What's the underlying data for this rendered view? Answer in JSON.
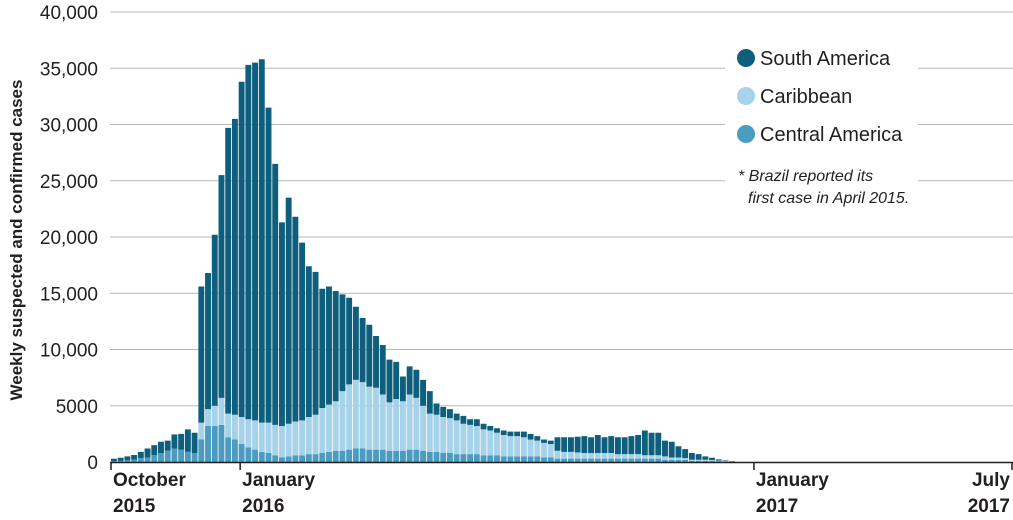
{
  "chart_data": {
    "type": "bar",
    "stacked": true,
    "ylabel": "Weekly suspected and confirmed cases",
    "xlabel": "",
    "ylim": [
      0,
      40000
    ],
    "yticks": [
      {
        "value": 0,
        "label": "0"
      },
      {
        "value": 5000,
        "label": "5000"
      },
      {
        "value": 10000,
        "label": "10,000"
      },
      {
        "value": 15000,
        "label": "15,000"
      },
      {
        "value": 20000,
        "label": "20,000"
      },
      {
        "value": 25000,
        "label": "25,000"
      },
      {
        "value": 30000,
        "label": "30,000"
      },
      {
        "value": 35000,
        "label": "35,000"
      },
      {
        "value": 40000,
        "label": "40,000"
      }
    ],
    "x_range": [
      "2015-10-01",
      "2017-07-01"
    ],
    "xticks": [
      {
        "date": "2015-10-01",
        "line1": "October",
        "line2": "2015",
        "anchor": "start"
      },
      {
        "date": "2016-01-01",
        "line1": "January",
        "line2": "2016",
        "anchor": "start"
      },
      {
        "date": "2017-01-01",
        "line1": "January",
        "line2": "2017",
        "anchor": "start"
      },
      {
        "date": "2017-07-01",
        "line1": "July",
        "line2": "2017",
        "anchor": "end"
      }
    ],
    "grid": true,
    "legend_position": "top-right",
    "colors": {
      "south_america": "#0e5f7d",
      "caribbean": "#a6d2ea",
      "central_america": "#4b9cc0"
    },
    "series": [
      {
        "name": "South America",
        "key": "south_america",
        "values": [
          210,
          280,
          350,
          420,
          550,
          800,
          900,
          1000,
          900,
          1250,
          1400,
          2000,
          1800,
          12100,
          12100,
          15200,
          19800,
          25400,
          26300,
          29800,
          31500,
          31800,
          32300,
          28000,
          23200,
          18100,
          20100,
          18200,
          15800,
          13400,
          12700,
          10600,
          10500,
          9800,
          8600,
          7700,
          6500,
          5700,
          5500,
          4600,
          4400,
          3800,
          3300,
          2200,
          2500,
          2500,
          2300,
          2000,
          1000,
          900,
          800,
          600,
          700,
          500,
          600,
          500,
          400,
          400,
          400,
          400,
          400,
          500,
          500,
          400,
          300,
          300,
          1200,
          1300,
          1300,
          1400,
          1500,
          1400,
          1600,
          1400,
          1500,
          1500,
          1500,
          1600,
          1700,
          2200,
          2000,
          2000,
          1400,
          1400,
          1000,
          800,
          600,
          500,
          300,
          200,
          100,
          50,
          30
        ]
      },
      {
        "name": "Caribbean",
        "key": "caribbean",
        "values": [
          0,
          0,
          0,
          0,
          0,
          0,
          0,
          0,
          0,
          0,
          0,
          0,
          0,
          1500,
          1500,
          1800,
          2400,
          2100,
          2200,
          2400,
          2500,
          2600,
          2600,
          2700,
          2700,
          2800,
          2900,
          3000,
          3100,
          3300,
          3500,
          4000,
          4200,
          4400,
          5300,
          5800,
          6100,
          5900,
          5600,
          5500,
          4900,
          4300,
          4600,
          4400,
          4900,
          4600,
          4000,
          3400,
          3300,
          3200,
          3100,
          3000,
          2700,
          2600,
          2500,
          2300,
          2200,
          2000,
          1900,
          1800,
          1800,
          1700,
          1500,
          1400,
          1300,
          1200,
          700,
          600,
          600,
          550,
          500,
          500,
          500,
          500,
          500,
          400,
          400,
          400,
          400,
          300,
          300,
          300,
          300,
          200,
          200,
          150,
          100,
          100,
          100,
          80,
          50,
          50,
          30
        ]
      },
      {
        "name": "Central America",
        "key": "central_america",
        "values": [
          80,
          100,
          150,
          200,
          350,
          400,
          600,
          800,
          1000,
          1200,
          1100,
          900,
          800,
          2000,
          3200,
          3200,
          3300,
          2200,
          2000,
          1600,
          1300,
          1100,
          900,
          800,
          600,
          400,
          500,
          600,
          600,
          700,
          700,
          800,
          900,
          1000,
          1000,
          1100,
          1200,
          1200,
          1100,
          1100,
          1100,
          1000,
          1000,
          1000,
          1100,
          1100,
          1000,
          900,
          900,
          800,
          800,
          700,
          700,
          700,
          700,
          600,
          600,
          600,
          500,
          500,
          500,
          500,
          500,
          500,
          400,
          400,
          300,
          300,
          300,
          300,
          300,
          300,
          300,
          300,
          300,
          300,
          300,
          300,
          300,
          300,
          300,
          300,
          200,
          200,
          200,
          200,
          100,
          100,
          100,
          100,
          80,
          50,
          30
        ]
      }
    ],
    "legend": [
      {
        "key": "south_america",
        "label": "South America"
      },
      {
        "key": "caribbean",
        "label": "Caribbean"
      },
      {
        "key": "central_america",
        "label": "Central America"
      }
    ],
    "annotation": [
      "* Brazil reported its",
      "first case in April 2015."
    ]
  }
}
